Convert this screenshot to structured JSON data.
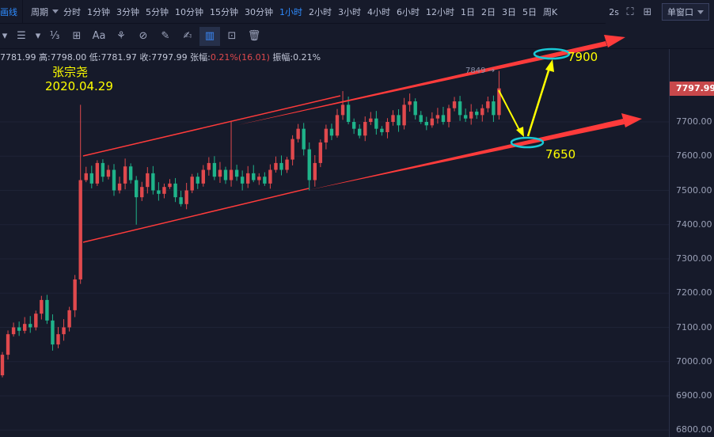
{
  "topbar": {
    "left_label": "画线",
    "period_label": "周期",
    "timeframes": [
      "分时",
      "1分钟",
      "3分钟",
      "5分钟",
      "10分钟",
      "15分钟",
      "30分钟",
      "1小时",
      "2小时",
      "3小时",
      "4小时",
      "6小时",
      "12小时",
      "1日",
      "2日",
      "3日",
      "5日",
      "周K"
    ],
    "active_timeframe": "1小时",
    "refresh": "2s",
    "window_mode": "单窗口"
  },
  "toolbar": {
    "icons": [
      "horizontal-line-icon",
      "fibonacci-icon",
      "measure-icon",
      "text-icon",
      "pattern-icon",
      "magnet-icon",
      "ruler-icon",
      "brush-icon",
      "candle-style-icon",
      "lock-icon",
      "trash-icon"
    ],
    "text_tool": "Aa"
  },
  "ohlc": {
    "open": "7781.99",
    "high_label": "高:",
    "high": "7798.00",
    "low_label": "低:",
    "low": "7781.97",
    "close_label": "收:",
    "close": "7797.99",
    "change_label": "张幅:",
    "change": "0.21%(16.01)",
    "amp_label": "振幅:",
    "amp": "0.21%"
  },
  "annotations": {
    "author": "张宗尧",
    "date": "2020.04.29",
    "target_high": "7900",
    "target_low": "7650",
    "prev_high": "7849 →"
  },
  "colors": {
    "up": "#e0494d",
    "down": "#1fb38a",
    "trend": "#ff3b3b",
    "ellipse": "#19c9d6",
    "arrow": "#ffff00"
  },
  "chart_data": {
    "type": "candlestick",
    "yticks": [
      7700,
      7600,
      7500,
      7400,
      7300,
      7200,
      7100,
      7000,
      6900,
      6800
    ],
    "ytick_labels": [
      "7700.00",
      "7600.00",
      "7500.00",
      "7400.00",
      "7300.00",
      "7200.00",
      "7100.00",
      "7000.00",
      "6900.00",
      "6800.00"
    ],
    "last_price": "7797.99",
    "closes": [
      7020,
      7080,
      7100,
      7090,
      7110,
      7100,
      7140,
      7180,
      7120,
      7050,
      7080,
      7100,
      7150,
      7240,
      7530,
      7550,
      7520,
      7580,
      7540,
      7560,
      7500,
      7520,
      7570,
      7530,
      7480,
      7510,
      7550,
      7500,
      7490,
      7510,
      7520,
      7480,
      7460,
      7500,
      7540,
      7520,
      7560,
      7580,
      7540,
      7560,
      7530,
      7560,
      7540,
      7520,
      7550,
      7530,
      7540,
      7520,
      7560,
      7580,
      7560,
      7590,
      7650,
      7680,
      7620,
      7530,
      7580,
      7640,
      7680,
      7660,
      7720,
      7750,
      7700,
      7680,
      7660,
      7700,
      7710,
      7680,
      7670,
      7700,
      7720,
      7690,
      7750,
      7760,
      7720,
      7700,
      7690,
      7710,
      7720,
      7700,
      7740,
      7760,
      7720,
      7710,
      7730,
      7720,
      7740,
      7760,
      7720,
      7798
    ],
    "first_open": 6960,
    "upper_channel": [
      [
        7600,
        7700
      ],
      [
        7900
      ]
    ],
    "lower_channel": [
      [
        7350,
        7500
      ],
      [
        7650
      ]
    ]
  }
}
